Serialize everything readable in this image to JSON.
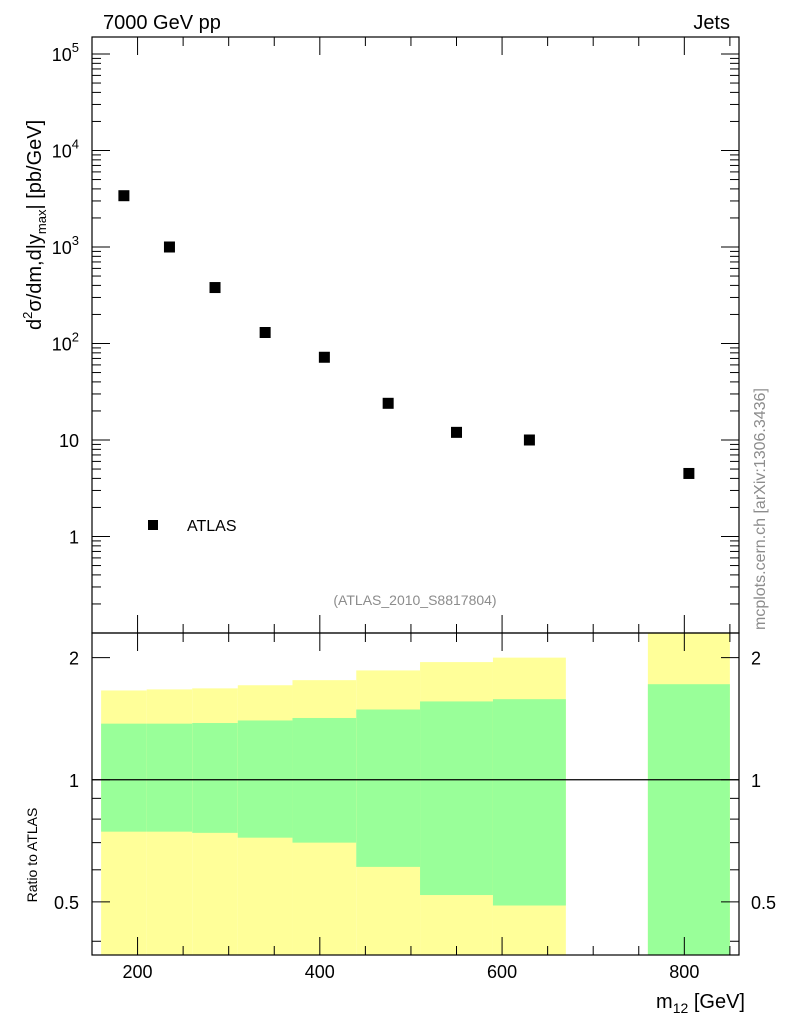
{
  "header": {
    "left": "7000 GeV pp",
    "right": "Jets"
  },
  "watermark": "mcplots.cern.ch [arXiv:1306.3436]",
  "analysis_label": "(ATLAS_2010_S8817804)",
  "legend": {
    "placement": "bottom-left",
    "entries": [
      {
        "label": "ATLAS",
        "marker": "filled-square"
      }
    ]
  },
  "chart_data": [
    {
      "type": "scatter",
      "panel": "main",
      "y_scale": "log",
      "ylabel": {
        "main": "d",
        "sup": "2",
        "mid": "σ/dm,d|y",
        "sub": "max",
        "tail": "| [pb/GeV]"
      },
      "ylim": [
        0.1,
        150000
      ],
      "xlim": [
        150,
        860
      ],
      "y_ticks": [
        {
          "value": 100000,
          "label": "10",
          "sup": "5"
        },
        {
          "value": 10000,
          "label": "10",
          "sup": "4"
        },
        {
          "value": 1000,
          "label": "10",
          "sup": "3"
        },
        {
          "value": 100,
          "label": "10",
          "sup": "2"
        },
        {
          "value": 10,
          "label": "10",
          "sup": ""
        },
        {
          "value": 1,
          "label": "1",
          "sup": ""
        }
      ],
      "series": [
        {
          "name": "ATLAS",
          "color": "#000000",
          "points": [
            {
              "x": 185,
              "y": 3400
            },
            {
              "x": 235,
              "y": 1000
            },
            {
              "x": 285,
              "y": 380
            },
            {
              "x": 340,
              "y": 130
            },
            {
              "x": 405,
              "y": 72
            },
            {
              "x": 475,
              "y": 24
            },
            {
              "x": 550,
              "y": 12
            },
            {
              "x": 630,
              "y": 10
            },
            {
              "x": 805,
              "y": 4.5
            }
          ]
        }
      ]
    },
    {
      "type": "area",
      "panel": "ratio",
      "y_scale": "log",
      "ylabel": "Ratio to ATLAS",
      "xlabel": {
        "main": "m",
        "sub": "12",
        "tail": " [GeV]"
      },
      "ylim": [
        0.37,
        2.3
      ],
      "xlim": [
        150,
        860
      ],
      "x_ticks": [
        200,
        400,
        600,
        800
      ],
      "y_ticks": [
        {
          "value": 2,
          "label": "2"
        },
        {
          "value": 1,
          "label": "1"
        },
        {
          "value": 0.5,
          "label": "0.5"
        }
      ],
      "reference_line": 1,
      "bands": [
        {
          "x_low": 160,
          "x_high": 210,
          "inner": [
            0.745,
            1.375
          ],
          "outer": [
            0.37,
            1.66
          ]
        },
        {
          "x_low": 210,
          "x_high": 260,
          "inner": [
            0.745,
            1.375
          ],
          "outer": [
            0.37,
            1.67
          ]
        },
        {
          "x_low": 260,
          "x_high": 310,
          "inner": [
            0.74,
            1.38
          ],
          "outer": [
            0.37,
            1.68
          ]
        },
        {
          "x_low": 310,
          "x_high": 370,
          "inner": [
            0.72,
            1.4
          ],
          "outer": [
            0.37,
            1.71
          ]
        },
        {
          "x_low": 370,
          "x_high": 440,
          "inner": [
            0.7,
            1.42
          ],
          "outer": [
            0.37,
            1.76
          ]
        },
        {
          "x_low": 440,
          "x_high": 510,
          "inner": [
            0.61,
            1.49
          ],
          "outer": [
            0.37,
            1.86
          ]
        },
        {
          "x_low": 510,
          "x_high": 590,
          "inner": [
            0.52,
            1.56
          ],
          "outer": [
            0.37,
            1.95
          ]
        },
        {
          "x_low": 590,
          "x_high": 670,
          "inner": [
            0.49,
            1.58
          ],
          "outer": [
            0.37,
            2.0
          ]
        },
        {
          "x_low": 760,
          "x_high": 850,
          "inner": [
            0.37,
            1.72
          ],
          "outer": [
            0.37,
            2.3
          ]
        }
      ],
      "band_colors": {
        "inner": "#99ff99",
        "outer": "#ffff99"
      }
    }
  ]
}
